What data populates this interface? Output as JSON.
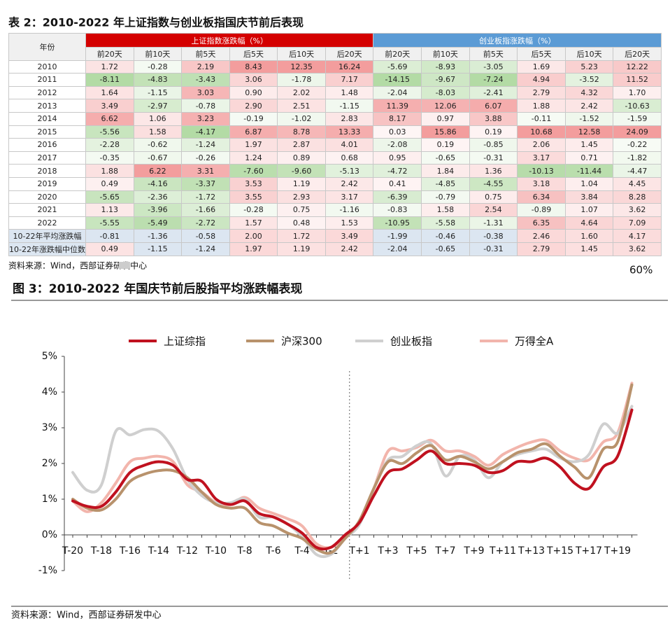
{
  "table": {
    "title": "表 2：2010-2022 年上证指数与创业板指国庆节前后表现",
    "header": {
      "year": "年份",
      "groups": [
        "上证指数涨跌幅（%）",
        "创业板指涨跌幅（%）"
      ],
      "columns": [
        "前20天",
        "前10天",
        "前5天",
        "后5天",
        "后10天",
        "后20天",
        "前20天",
        "前10天",
        "前5天",
        "后5天",
        "后10天",
        "后20天"
      ]
    },
    "rows": [
      [
        "2010",
        "1.72",
        "-0.28",
        "2.19",
        "8.43",
        "12.35",
        "16.24",
        "-5.69",
        "-8.93",
        "-3.05",
        "1.69",
        "5.23",
        "12.22"
      ],
      [
        "2011",
        "-8.11",
        "-4.83",
        "-3.43",
        "3.06",
        "-1.78",
        "7.17",
        "-14.15",
        "-9.67",
        "-7.24",
        "4.94",
        "-3.52",
        "11.52"
      ],
      [
        "2012",
        "1.64",
        "-1.15",
        "3.03",
        "0.90",
        "2.02",
        "1.48",
        "-2.04",
        "-8.03",
        "-2.41",
        "2.79",
        "4.32",
        "1.70"
      ],
      [
        "2013",
        "3.49",
        "-2.97",
        "-0.78",
        "2.90",
        "2.51",
        "-1.15",
        "11.39",
        "12.06",
        "6.07",
        "1.88",
        "2.42",
        "-10.63"
      ],
      [
        "2014",
        "6.62",
        "1.06",
        "3.23",
        "-0.19",
        "-1.02",
        "2.83",
        "8.17",
        "0.97",
        "3.88",
        "-0.11",
        "-1.52",
        "-1.59"
      ],
      [
        "2015",
        "-5.56",
        "1.58",
        "-4.17",
        "6.87",
        "8.78",
        "13.33",
        "0.03",
        "15.86",
        "0.19",
        "10.68",
        "12.58",
        "24.09"
      ],
      [
        "2016",
        "-2.28",
        "-0.62",
        "-1.24",
        "1.97",
        "2.87",
        "4.01",
        "-2.08",
        "0.19",
        "-0.85",
        "2.06",
        "1.45",
        "-0.22"
      ],
      [
        "2017",
        "-0.35",
        "-0.67",
        "-0.26",
        "1.24",
        "0.89",
        "0.68",
        "0.95",
        "-0.65",
        "-0.31",
        "3.17",
        "0.71",
        "-1.82"
      ],
      [
        "2018",
        "1.88",
        "6.22",
        "3.31",
        "-7.60",
        "-9.60",
        "-5.13",
        "-4.72",
        "1.84",
        "1.36",
        "-10.13",
        "-11.44",
        "-4.47"
      ],
      [
        "2019",
        "0.49",
        "-4.16",
        "-3.37",
        "3.53",
        "1.19",
        "2.42",
        "0.41",
        "-4.85",
        "-4.55",
        "3.18",
        "1.04",
        "4.45"
      ],
      [
        "2020",
        "-5.65",
        "-2.36",
        "-1.72",
        "3.55",
        "2.93",
        "3.17",
        "-6.39",
        "-0.79",
        "0.75",
        "6.34",
        "3.84",
        "8.28"
      ],
      [
        "2021",
        "1.13",
        "-3.96",
        "-1.66",
        "-0.28",
        "0.75",
        "-1.16",
        "-0.83",
        "1.58",
        "2.54",
        "-0.89",
        "1.07",
        "3.62"
      ],
      [
        "2022",
        "-5.55",
        "-5.49",
        "-2.72",
        "1.57",
        "0.48",
        "1.53",
        "-10.95",
        "-5.58",
        "-1.31",
        "6.35",
        "4.64",
        "7.09"
      ],
      [
        "10-22年平均涨跌幅",
        "-0.81",
        "-1.36",
        "-0.58",
        "2.00",
        "1.72",
        "3.49",
        "-1.99",
        "-0.46",
        "-0.38",
        "2.46",
        "1.60",
        "4.17"
      ],
      [
        "10-22年涨跌幅中位数",
        "0.49",
        "-1.15",
        "-1.24",
        "1.97",
        "1.19",
        "2.42",
        "-2.04",
        "-0.65",
        "-0.31",
        "2.79",
        "1.45",
        "3.62"
      ]
    ],
    "source": "资料来源：Wind，西部证券研发中心"
  },
  "stray_label": "60%",
  "chart_data": {
    "type": "line",
    "title": "图 3：2010-2022 年国庆节前后股指平均涨跌幅表现",
    "categories": [
      "T-20",
      null,
      "T-18",
      null,
      "T-16",
      null,
      "T-14",
      null,
      "T-12",
      null,
      "T-10",
      null,
      "T-8",
      null,
      "T-6",
      null,
      "T-4",
      null,
      "T-2",
      null,
      "T+1",
      null,
      "T+3",
      null,
      "T+5",
      null,
      "T+7",
      null,
      "T+9",
      null,
      "T+11",
      null,
      "T+13",
      null,
      "T+15",
      null,
      "T+17",
      null,
      "T+19",
      null
    ],
    "ylim": [
      -1,
      5
    ],
    "yticks": [
      {
        "value": -1,
        "label": "-1%"
      },
      {
        "value": 0,
        "label": "0%"
      },
      {
        "value": 1,
        "label": "1%"
      },
      {
        "value": 2,
        "label": "2%"
      },
      {
        "value": 3,
        "label": "3%"
      },
      {
        "value": 4,
        "label": "4%"
      },
      {
        "value": 5,
        "label": "5%"
      }
    ],
    "series": [
      {
        "name": "上证综指",
        "color": "#c0111f",
        "values": [
          0.95,
          0.8,
          0.8,
          1.2,
          1.75,
          1.95,
          2.05,
          1.95,
          1.55,
          1.5,
          1.0,
          0.85,
          0.95,
          0.6,
          0.5,
          0.3,
          0.05,
          -0.35,
          -0.35,
          0.0,
          0.35,
          1.1,
          1.75,
          1.85,
          2.1,
          2.35,
          2.0,
          2.0,
          1.95,
          1.75,
          1.8,
          2.05,
          2.05,
          2.15,
          1.9,
          1.45,
          1.3,
          1.9,
          2.2,
          3.5
        ]
      },
      {
        "name": "沪深300",
        "color": "#b8926c",
        "values": [
          1.0,
          0.75,
          0.7,
          1.0,
          1.5,
          1.7,
          1.8,
          1.8,
          1.6,
          1.2,
          0.85,
          0.75,
          0.75,
          0.35,
          0.25,
          0.05,
          -0.1,
          -0.4,
          -0.5,
          -0.1,
          0.4,
          1.3,
          2.05,
          2.0,
          2.3,
          2.5,
          2.1,
          2.2,
          2.05,
          1.85,
          2.05,
          2.3,
          2.4,
          2.55,
          2.2,
          1.9,
          1.6,
          2.4,
          2.6,
          4.2
        ]
      },
      {
        "name": "创业板指",
        "color": "#cfcfcf",
        "values": [
          1.75,
          1.25,
          1.4,
          2.9,
          2.8,
          2.95,
          2.9,
          2.4,
          1.55,
          1.1,
          0.9,
          0.9,
          1.0,
          0.5,
          0.5,
          0.3,
          -0.05,
          -0.55,
          -0.55,
          -0.1,
          0.3,
          1.3,
          2.1,
          2.2,
          2.5,
          2.55,
          1.65,
          2.2,
          2.1,
          1.6,
          2.05,
          2.25,
          2.35,
          2.4,
          2.15,
          2.05,
          2.25,
          3.1,
          2.85,
          3.6
        ]
      },
      {
        "name": "万得全A",
        "color": "#f2b5ac",
        "values": [
          0.95,
          0.65,
          0.9,
          1.45,
          2.05,
          2.15,
          2.2,
          2.05,
          1.4,
          1.2,
          0.9,
          0.85,
          1.05,
          0.75,
          0.6,
          0.45,
          0.25,
          -0.25,
          -0.35,
          -0.05,
          0.35,
          1.3,
          2.35,
          2.35,
          2.45,
          2.65,
          2.35,
          2.35,
          2.2,
          1.95,
          2.25,
          2.45,
          2.6,
          2.65,
          2.35,
          2.15,
          2.1,
          2.6,
          2.85,
          4.25
        ]
      }
    ],
    "source": "资料来源：Wind，西部证券研发中心"
  }
}
